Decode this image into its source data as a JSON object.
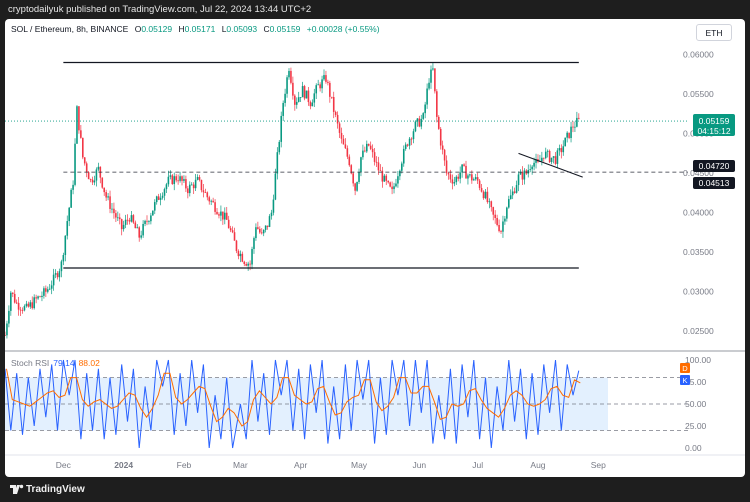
{
  "header": {
    "publisher_line": "cryptodailyuk published on TradingView.com, Jul 22, 2024 13:44 UTC+2"
  },
  "footer": {
    "brand": "TradingView"
  },
  "symbol_button": "ETH",
  "legend": {
    "symbol": "SOL / Ethereum, 8h, BINANCE",
    "o_label": "O",
    "o": "0.05129",
    "h_label": "H",
    "h": "0.05171",
    "l_label": "L",
    "l": "0.05093",
    "c_label": "C",
    "c": "0.05159",
    "change": "+0.00028 (+0.55%)"
  },
  "price_badges": {
    "last": "0.05159",
    "countdown": "04:15:12",
    "level_a": "0.04720",
    "level_b": "0.04513"
  },
  "stoch_rsi": {
    "name": "Stoch RSI",
    "k": "79.14",
    "d": "88.02",
    "d_tag": "D",
    "k_tag": "K",
    "ticks": [
      "100.00",
      "75.00",
      "50.00",
      "25.00",
      "0.00"
    ],
    "tick_values": [
      100,
      75,
      50,
      25,
      0
    ]
  },
  "colors": {
    "up": "#089981",
    "down": "#f23645",
    "k_line": "#2962ff",
    "d_line": "#ff6d00",
    "band": "#e3f0fe"
  },
  "chart_data": {
    "type": "candlestick",
    "series_name": "SOL / Ethereum, 8h, BINANCE",
    "y_ticks": [
      0.06,
      0.055,
      0.05,
      0.045,
      0.04,
      0.035,
      0.03,
      0.025
    ],
    "y_tick_labels": [
      "0.06000",
      "0.05500",
      "0.05000",
      "0.04500",
      "0.04000",
      "0.03500",
      "0.03000",
      "0.02500"
    ],
    "x_ticks": [
      {
        "label": "Dec",
        "date": "2023-12-01"
      },
      {
        "label": "2024",
        "date": "2024-01-01"
      },
      {
        "label": "Feb",
        "date": "2024-02-01"
      },
      {
        "label": "Mar",
        "date": "2024-03-01"
      },
      {
        "label": "Apr",
        "date": "2024-04-01"
      },
      {
        "label": "May",
        "date": "2024-05-01"
      },
      {
        "label": "Jun",
        "date": "2024-06-01"
      },
      {
        "label": "Jul",
        "date": "2024-07-01"
      },
      {
        "label": "Aug",
        "date": "2024-08-01"
      },
      {
        "label": "Sep",
        "date": "2024-09-01"
      }
    ],
    "x_range": [
      "2023-11-01",
      "2024-09-06"
    ],
    "y_range": [
      0.0225,
      0.0645
    ],
    "price_path": [
      [
        "2023-11-01",
        0.0245
      ],
      [
        "2023-11-04",
        0.03
      ],
      [
        "2023-11-07",
        0.0285
      ],
      [
        "2023-11-12",
        0.0278
      ],
      [
        "2023-11-17",
        0.029
      ],
      [
        "2023-11-22",
        0.03
      ],
      [
        "2023-11-26",
        0.0315
      ],
      [
        "2023-11-30",
        0.0335
      ],
      [
        "2023-12-03",
        0.039
      ],
      [
        "2023-12-06",
        0.044
      ],
      [
        "2023-12-08",
        0.053
      ],
      [
        "2023-12-11",
        0.047
      ],
      [
        "2023-12-15",
        0.044
      ],
      [
        "2023-12-19",
        0.0455
      ],
      [
        "2023-12-23",
        0.042
      ],
      [
        "2023-12-27",
        0.04
      ],
      [
        "2023-12-31",
        0.038
      ],
      [
        "2024-01-04",
        0.0395
      ],
      [
        "2024-01-09",
        0.037
      ],
      [
        "2024-01-14",
        0.0395
      ],
      [
        "2024-01-19",
        0.042
      ],
      [
        "2024-01-24",
        0.044
      ],
      [
        "2024-01-29",
        0.0445
      ],
      [
        "2024-02-03",
        0.043
      ],
      [
        "2024-02-08",
        0.044
      ],
      [
        "2024-02-13",
        0.042
      ],
      [
        "2024-02-18",
        0.0405
      ],
      [
        "2024-02-23",
        0.039
      ],
      [
        "2024-02-28",
        0.0355
      ],
      [
        "2024-03-03",
        0.034
      ],
      [
        "2024-03-06",
        0.0335
      ],
      [
        "2024-03-09",
        0.0385
      ],
      [
        "2024-03-12",
        0.037
      ],
      [
        "2024-03-15",
        0.0385
      ],
      [
        "2024-03-17",
        0.04
      ],
      [
        "2024-03-20",
        0.047
      ],
      [
        "2024-03-23",
        0.054
      ],
      [
        "2024-03-26",
        0.0585
      ],
      [
        "2024-03-29",
        0.054
      ],
      [
        "2024-04-02",
        0.0555
      ],
      [
        "2024-04-06",
        0.054
      ],
      [
        "2024-04-10",
        0.056
      ],
      [
        "2024-04-14",
        0.057
      ],
      [
        "2024-04-18",
        0.053
      ],
      [
        "2024-04-22",
        0.049
      ],
      [
        "2024-04-26",
        0.0465
      ],
      [
        "2024-04-29",
        0.043
      ],
      [
        "2024-05-02",
        0.047
      ],
      [
        "2024-05-06",
        0.0485
      ],
      [
        "2024-05-10",
        0.046
      ],
      [
        "2024-05-14",
        0.044
      ],
      [
        "2024-05-18",
        0.0425
      ],
      [
        "2024-05-22",
        0.046
      ],
      [
        "2024-05-26",
        0.049
      ],
      [
        "2024-05-30",
        0.051
      ],
      [
        "2024-06-03",
        0.052
      ],
      [
        "2024-06-06",
        0.057
      ],
      [
        "2024-06-08",
        0.058
      ],
      [
        "2024-06-10",
        0.052
      ],
      [
        "2024-06-12",
        0.049
      ],
      [
        "2024-06-15",
        0.045
      ],
      [
        "2024-06-19",
        0.044
      ],
      [
        "2024-06-23",
        0.0455
      ],
      [
        "2024-06-27",
        0.0445
      ],
      [
        "2024-07-01",
        0.044
      ],
      [
        "2024-07-05",
        0.042
      ],
      [
        "2024-07-09",
        0.0395
      ],
      [
        "2024-07-13",
        0.0378
      ],
      [
        "2024-07-16",
        0.041
      ],
      [
        "2024-07-19",
        0.0425
      ],
      [
        "2024-07-22",
        0.0445
      ],
      [
        "2024-07-26",
        0.045
      ],
      [
        "2024-07-29",
        0.0465
      ],
      [
        "2024-08-01",
        0.046
      ],
      [
        "2024-08-04",
        0.0475
      ],
      [
        "2024-08-07",
        0.047
      ],
      [
        "2024-08-10",
        0.0468
      ],
      [
        "2024-08-13",
        0.048
      ],
      [
        "2024-08-16",
        0.0495
      ],
      [
        "2024-08-19",
        0.051
      ],
      [
        "2024-08-22",
        0.0516
      ]
    ],
    "annotations": {
      "resistance": {
        "price": 0.059,
        "from": "2023-12-01",
        "to": "2024-08-22"
      },
      "support": {
        "price": 0.033,
        "from": "2023-12-01",
        "to": "2024-08-22"
      },
      "dashed_level": {
        "price": 0.04513
      },
      "dotted_last": {
        "price": 0.05159
      },
      "trendline": {
        "from": [
          "2024-07-22",
          0.0475
        ],
        "to": [
          "2024-08-24",
          0.0445
        ]
      }
    },
    "stoch_rsi_path": [
      [
        "2023-11-01",
        90
      ],
      [
        "2023-11-04",
        20
      ],
      [
        "2023-11-07",
        85
      ],
      [
        "2023-11-10",
        15
      ],
      [
        "2023-11-13",
        80
      ],
      [
        "2023-11-16",
        25
      ],
      [
        "2023-11-19",
        90
      ],
      [
        "2023-11-22",
        35
      ],
      [
        "2023-11-25",
        95
      ],
      [
        "2023-11-28",
        20
      ],
      [
        "2023-12-01",
        100
      ],
      [
        "2023-12-04",
        60
      ],
      [
        "2023-12-07",
        100
      ],
      [
        "2023-12-10",
        10
      ],
      [
        "2023-12-13",
        85
      ],
      [
        "2023-12-16",
        20
      ],
      [
        "2023-12-19",
        90
      ],
      [
        "2023-12-22",
        10
      ],
      [
        "2023-12-25",
        80
      ],
      [
        "2023-12-28",
        15
      ],
      [
        "2023-12-31",
        95
      ],
      [
        "2024-01-03",
        30
      ],
      [
        "2024-01-06",
        90
      ],
      [
        "2024-01-09",
        0
      ],
      [
        "2024-01-12",
        70
      ],
      [
        "2024-01-15",
        20
      ],
      [
        "2024-01-18",
        100
      ],
      [
        "2024-01-21",
        70
      ],
      [
        "2024-01-24",
        100
      ],
      [
        "2024-01-27",
        15
      ],
      [
        "2024-01-30",
        85
      ],
      [
        "2024-02-02",
        25
      ],
      [
        "2024-02-05",
        100
      ],
      [
        "2024-02-08",
        40
      ],
      [
        "2024-02-11",
        95
      ],
      [
        "2024-02-14",
        0
      ],
      [
        "2024-02-17",
        60
      ],
      [
        "2024-02-20",
        10
      ],
      [
        "2024-02-23",
        80
      ],
      [
        "2024-02-26",
        0
      ],
      [
        "2024-03-01",
        50
      ],
      [
        "2024-03-04",
        10
      ],
      [
        "2024-03-07",
        100
      ],
      [
        "2024-03-10",
        30
      ],
      [
        "2024-03-13",
        85
      ],
      [
        "2024-03-16",
        15
      ],
      [
        "2024-03-19",
        100
      ],
      [
        "2024-03-22",
        60
      ],
      [
        "2024-03-25",
        100
      ],
      [
        "2024-03-28",
        20
      ],
      [
        "2024-03-31",
        90
      ],
      [
        "2024-04-03",
        10
      ],
      [
        "2024-04-06",
        95
      ],
      [
        "2024-04-09",
        40
      ],
      [
        "2024-04-12",
        100
      ],
      [
        "2024-04-15",
        5
      ],
      [
        "2024-04-18",
        70
      ],
      [
        "2024-04-21",
        10
      ],
      [
        "2024-04-24",
        95
      ],
      [
        "2024-04-27",
        20
      ],
      [
        "2024-04-30",
        100
      ],
      [
        "2024-05-03",
        55
      ],
      [
        "2024-05-06",
        100
      ],
      [
        "2024-05-09",
        5
      ],
      [
        "2024-05-12",
        80
      ],
      [
        "2024-05-15",
        15
      ],
      [
        "2024-05-18",
        100
      ],
      [
        "2024-05-21",
        60
      ],
      [
        "2024-05-24",
        100
      ],
      [
        "2024-05-27",
        25
      ],
      [
        "2024-05-30",
        100
      ],
      [
        "2024-06-02",
        40
      ],
      [
        "2024-06-05",
        100
      ],
      [
        "2024-06-08",
        5
      ],
      [
        "2024-06-11",
        60
      ],
      [
        "2024-06-14",
        10
      ],
      [
        "2024-06-17",
        90
      ],
      [
        "2024-06-20",
        5
      ],
      [
        "2024-06-23",
        95
      ],
      [
        "2024-06-26",
        35
      ],
      [
        "2024-06-29",
        100
      ],
      [
        "2024-07-02",
        10
      ],
      [
        "2024-07-05",
        80
      ],
      [
        "2024-07-08",
        0
      ],
      [
        "2024-07-11",
        70
      ],
      [
        "2024-07-14",
        20
      ],
      [
        "2024-07-17",
        100
      ],
      [
        "2024-07-20",
        30
      ],
      [
        "2024-07-23",
        90
      ],
      [
        "2024-07-26",
        10
      ],
      [
        "2024-07-29",
        85
      ],
      [
        "2024-08-01",
        15
      ],
      [
        "2024-08-04",
        95
      ],
      [
        "2024-08-07",
        40
      ],
      [
        "2024-08-10",
        100
      ],
      [
        "2024-08-13",
        20
      ],
      [
        "2024-08-16",
        95
      ],
      [
        "2024-08-19",
        60
      ],
      [
        "2024-08-22",
        88
      ]
    ]
  }
}
